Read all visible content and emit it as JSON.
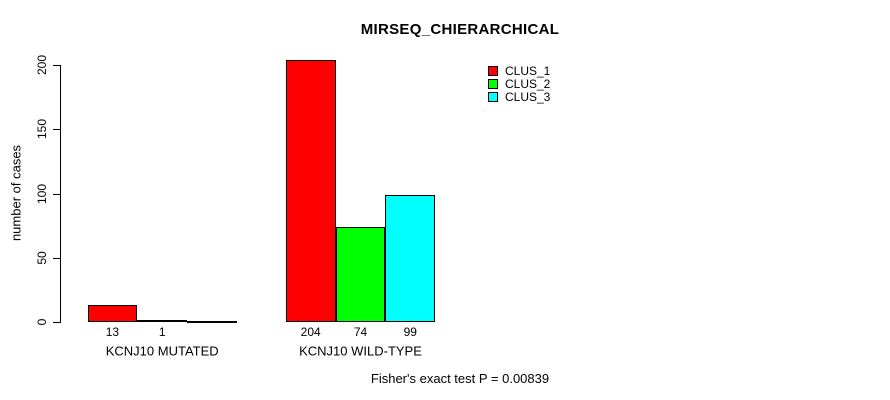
{
  "title": "MIRSEQ_CHIERARCHICAL",
  "y_axis": {
    "label": "number of cases"
  },
  "footer": "Fisher's exact test P = 0.00839",
  "legend": {
    "items": [
      {
        "label": "CLUS_1",
        "color": "#ff0000"
      },
      {
        "label": "CLUS_2",
        "color": "#00ff00"
      },
      {
        "label": "CLUS_3",
        "color": "#00ffff"
      }
    ]
  },
  "chart_data": {
    "type": "bar",
    "title": "MIRSEQ_CHIERARCHICAL",
    "categories": [
      "KCNJ10 MUTATED",
      "KCNJ10 WILD-TYPE"
    ],
    "series": [
      {
        "name": "CLUS_1",
        "color": "#ff0000",
        "values": [
          13,
          204
        ]
      },
      {
        "name": "CLUS_2",
        "color": "#00ff00",
        "values": [
          1,
          74
        ]
      },
      {
        "name": "CLUS_3",
        "color": "#00ffff",
        "values": [
          0,
          99
        ]
      }
    ],
    "bar_value_labels": [
      [
        "13",
        "1",
        null
      ],
      [
        "204",
        "74",
        "99"
      ]
    ],
    "xlabel": "",
    "ylabel": "number of cases",
    "ylim": [
      0,
      200
    ],
    "yticks": [
      0,
      50,
      100,
      150,
      200
    ],
    "grid": false,
    "legend_position": "top-right",
    "annotation": "Fisher's exact test P = 0.00839"
  }
}
